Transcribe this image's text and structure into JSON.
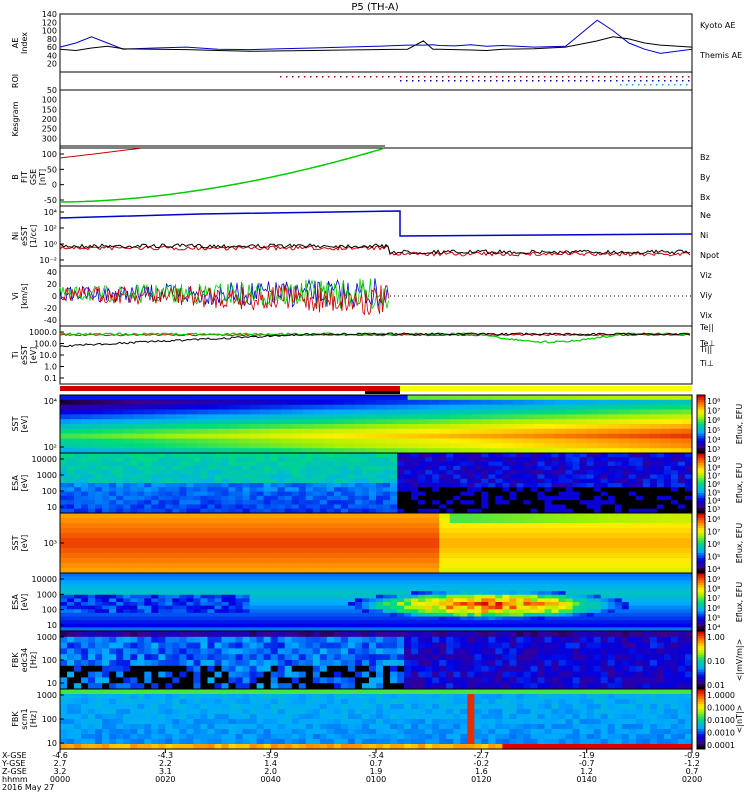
{
  "title": "P5 (TH-A)",
  "chart_data": [
    {
      "type": "line",
      "ylabel": "AE Index",
      "ylim": [
        0,
        140
      ],
      "yticks": [
        "20",
        "40",
        "60",
        "80",
        "100",
        "120",
        "140"
      ],
      "x": [
        0,
        5,
        10,
        15,
        20,
        30,
        40,
        50,
        60,
        70,
        80,
        90,
        100,
        110,
        115,
        118,
        120,
        125,
        130,
        135,
        140,
        150,
        160,
        170,
        175,
        180,
        185,
        190,
        200
      ],
      "series": [
        {
          "name": "Kyoto AE",
          "color": "#0000cc",
          "values": [
            60,
            70,
            85,
            70,
            55,
            58,
            60,
            55,
            54,
            56,
            58,
            60,
            62,
            65,
            65,
            66,
            64,
            63,
            66,
            62,
            64,
            60,
            62,
            125,
            100,
            70,
            55,
            45,
            55
          ]
        },
        {
          "name": "Themis AE",
          "color": "#000000",
          "values": [
            55,
            52,
            58,
            62,
            56,
            55,
            54,
            52,
            50,
            51,
            52,
            53,
            54,
            55,
            75,
            55,
            55,
            54,
            53,
            52,
            55,
            56,
            60,
            75,
            85,
            80,
            70,
            65,
            60
          ]
        }
      ]
    },
    {
      "type": "scatter",
      "ylabel": "ROI",
      "note_rows": [
        "red dots",
        "blue dots",
        "cyan dots"
      ]
    },
    {
      "type": "line",
      "ylabel": "Kesgram",
      "ylim": [
        0,
        300
      ],
      "yticks": [
        "50",
        "100",
        "150",
        "200",
        "250",
        "300"
      ],
      "series": []
    },
    {
      "type": "line",
      "ylabel": "B FIT GSE [nT]",
      "ylim": [
        -50,
        100
      ],
      "yticks": [
        "-50",
        "0",
        "50",
        "100"
      ],
      "series": [
        {
          "name": "Bz",
          "color": "#cc0000"
        },
        {
          "name": "By",
          "color": "#00cc00"
        },
        {
          "name": "Bx",
          "color": "#0000cc"
        }
      ]
    },
    {
      "type": "line",
      "ylabel": "Ni eSST [1/cc]",
      "yticks": [
        "10⁴",
        "10²",
        "10⁰",
        "10⁻²"
      ],
      "series": [
        {
          "name": "Ne",
          "color": "#cc0000"
        },
        {
          "name": "Ni",
          "color": "#000000"
        },
        {
          "name": "Npot",
          "color": "#0000cc"
        }
      ]
    },
    {
      "type": "line",
      "ylabel": "Vi [km/s]",
      "ylim": [
        -40,
        40
      ],
      "yticks": [
        "40",
        "20",
        "0",
        "-20",
        "-40"
      ],
      "series": [
        {
          "name": "Viz",
          "color": "#cc0000"
        },
        {
          "name": "Viy",
          "color": "#00cc00"
        },
        {
          "name": "Vix",
          "color": "#0000cc"
        }
      ]
    },
    {
      "type": "line",
      "ylabel": "Ti eSST [eV]",
      "yticks": [
        "1000.0",
        "100.0",
        "10.0",
        "1.0",
        "0.1"
      ],
      "series": [
        {
          "name": "Te||",
          "color": "#000000"
        },
        {
          "name": "Te⊥",
          "color": "#cc0000"
        },
        {
          "name": "Ti||",
          "color": "#00cc00"
        },
        {
          "name": "Ti⊥",
          "color": "#0000cc"
        }
      ]
    },
    {
      "type": "heatmap",
      "ylabel": "SST [eV]",
      "yticks": [
        "10⁴",
        "10²"
      ],
      "colorbar_label": "Eflux, EFU",
      "colorbar_ticks": [
        "10⁸",
        "10⁷",
        "10⁶",
        "10⁵",
        "10⁴",
        "10³"
      ]
    },
    {
      "type": "heatmap",
      "ylabel": "ESA [eV]",
      "yticks": [
        "10000",
        "1000",
        "100",
        "10"
      ],
      "colorbar_label": "Eflux, EFU",
      "colorbar_ticks": [
        "10⁹",
        "10⁸",
        "10⁷",
        "10⁶",
        "10⁵",
        "10⁴",
        "10³"
      ]
    },
    {
      "type": "heatmap",
      "ylabel": "SST [eV]",
      "yticks": [
        "10³"
      ],
      "colorbar_label": "Eflux, EFU",
      "colorbar_ticks": [
        "10⁸",
        "10⁷",
        "10⁶",
        "10⁵",
        "10⁴"
      ]
    },
    {
      "type": "heatmap",
      "ylabel": "ESA [eV]",
      "yticks": [
        "10000",
        "1000",
        "100",
        "10"
      ],
      "colorbar_label": "Eflux, EFU",
      "colorbar_ticks": [
        "10⁹",
        "10⁸",
        "10⁷",
        "10⁶",
        "10⁵",
        "10⁴"
      ]
    },
    {
      "type": "heatmap",
      "ylabel": "FBK edc34 [Hz]",
      "yticks": [
        "1000",
        "100",
        "10"
      ],
      "colorbar_label": "<|mV/m|>",
      "colorbar_ticks": [
        "1.00",
        "0.10",
        "0.01"
      ]
    },
    {
      "type": "heatmap",
      "ylabel": "FBK scm1 [Hz]",
      "yticks": [
        "1000",
        "100",
        "10"
      ],
      "colorbar_label": "<|nT|>",
      "colorbar_ticks": [
        "1.0000",
        "0.1000",
        "0.0100",
        "0.0010",
        "0.0001"
      ]
    }
  ],
  "ephemeris": {
    "row_labels": [
      "X-GSE",
      "Y-GSE",
      "Z-GSE",
      "hhmm",
      "2016 May 27"
    ],
    "columns": [
      [
        "-4.6",
        "2.7",
        "3.2",
        "0000"
      ],
      [
        "-4.3",
        "2.2",
        "3.1",
        "0020"
      ],
      [
        "-3.9",
        "1.4",
        "2.0",
        "0040"
      ],
      [
        "-3.4",
        "0.7",
        "1.9",
        "0100"
      ],
      [
        "-2.7",
        "-0.2",
        "1.6",
        "0120"
      ],
      [
        "-1.9",
        "-0.7",
        "1.2",
        "0140"
      ],
      [
        "-0.9",
        "-1.2",
        "0.7",
        "0200"
      ]
    ]
  }
}
